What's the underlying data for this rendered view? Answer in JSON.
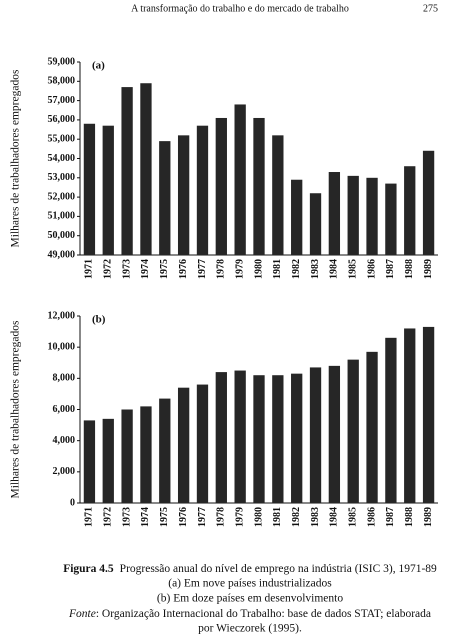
{
  "page_header": {
    "title": "A transformação do trabalho e do mercado de trabalho",
    "page_number": "275"
  },
  "chart_data": [
    {
      "type": "bar",
      "annotation": "(a)",
      "y_label": "Milhares de trabalhadores empregados",
      "color": "#262626",
      "categories": [
        "1971",
        "1972",
        "1973",
        "1974",
        "1975",
        "1976",
        "1977",
        "1978",
        "1979",
        "1980",
        "1981",
        "1982",
        "1983",
        "1984",
        "1985",
        "1986",
        "1987",
        "1988",
        "1989"
      ],
      "values": [
        55800,
        55700,
        57700,
        57900,
        54900,
        55200,
        55700,
        56100,
        56800,
        56100,
        55200,
        52900,
        52200,
        53300,
        53100,
        53000,
        52700,
        53600,
        54400
      ],
      "ylim": [
        49000,
        59000
      ],
      "yticks": [
        {
          "value": 49000,
          "label": "49,000"
        },
        {
          "value": 50000,
          "label": "50,000"
        },
        {
          "value": 51000,
          "label": "51,000"
        },
        {
          "value": 52000,
          "label": "52,000"
        },
        {
          "value": 53000,
          "label": "53,000"
        },
        {
          "value": 54000,
          "label": "54,000"
        },
        {
          "value": 55000,
          "label": "55,000"
        },
        {
          "value": 56000,
          "label": "56,000"
        },
        {
          "value": 57000,
          "label": "57,000"
        },
        {
          "value": 58000,
          "label": "58,000"
        },
        {
          "value": 59000,
          "label": "59,000"
        }
      ]
    },
    {
      "type": "bar",
      "annotation": "(b)",
      "y_label": "Milhares de trabalhadores empregados",
      "color": "#262626",
      "categories": [
        "1971",
        "1972",
        "1973",
        "1974",
        "1975",
        "1976",
        "1977",
        "1978",
        "1979",
        "1980",
        "1981",
        "1982",
        "1983",
        "1984",
        "1985",
        "1986",
        "1987",
        "1988",
        "1989"
      ],
      "values": [
        5300,
        5400,
        6000,
        6200,
        6700,
        7400,
        7600,
        8400,
        8500,
        8200,
        8200,
        8300,
        8700,
        8800,
        9200,
        9700,
        10600,
        11200,
        11300
      ],
      "ylim": [
        0,
        12000
      ],
      "yticks": [
        0,
        {
          "value": 2000,
          "label": "2,000"
        },
        {
          "value": 4000,
          "label": "4,000"
        },
        {
          "value": 6000,
          "label": "6,000"
        },
        {
          "value": 8000,
          "label": "8,000"
        },
        {
          "value": 10000,
          "label": "10,000"
        },
        {
          "value": 12000,
          "label": "12,000"
        }
      ]
    }
  ],
  "caption": {
    "label": "Figura 4.5",
    "text": "Progressão anual do nível de emprego na indústria (ISIC 3), 1971-89",
    "lines": [
      "(a) Em nove países industrializados",
      "(b) Em doze países em desenvolvimento"
    ],
    "source_label": "Fonte",
    "source_text": ": Organização Internacional do Trabalho: base de dados STAT; elaborada",
    "source_end": "por Wieczorek (1995)."
  }
}
